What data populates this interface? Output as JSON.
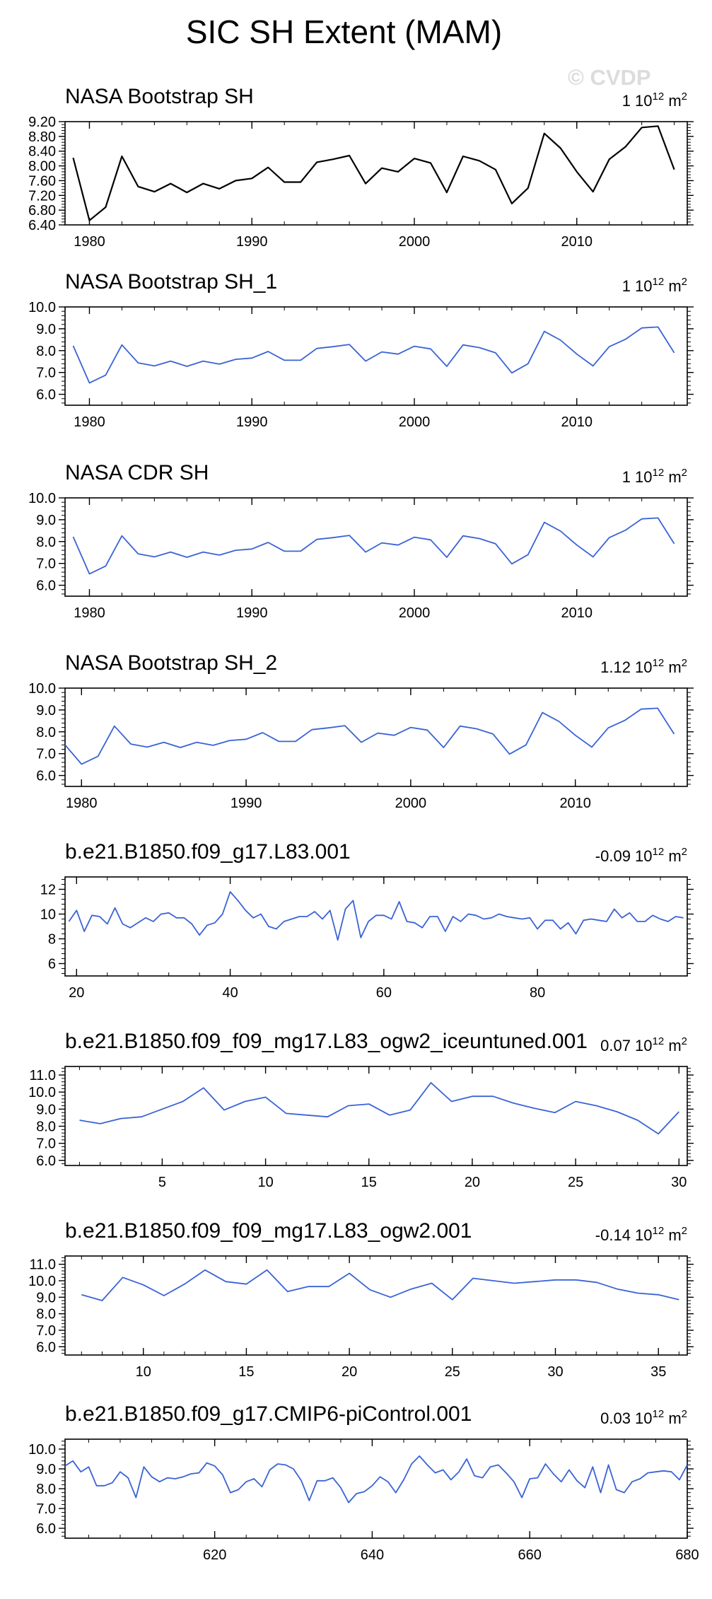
{
  "figure": {
    "title": "SIC SH Extent (MAM)",
    "watermark": "© CVDP",
    "unit_label": "10",
    "unit_exp1": "12",
    "unit_exp2": "m",
    "unit_exp3": "2"
  },
  "colors": {
    "obs": "#000000",
    "model": "#3a63d6",
    "axis": "#000000"
  },
  "chart_data": [
    {
      "type": "line",
      "title": "NASA Bootstrap SH",
      "scale_value": "1",
      "color": "obs",
      "xlim": [
        1978.5,
        2016.8
      ],
      "ylim": [
        6.4,
        9.2
      ],
      "xticks": [
        1980,
        1990,
        2000,
        2010
      ],
      "xtick_labels": [
        "1980",
        "1990",
        "2000",
        "2010"
      ],
      "yticks": [
        6.4,
        6.8,
        7.2,
        7.6,
        8.0,
        8.4,
        8.8,
        9.2
      ],
      "ytick_labels": [
        "6.40",
        "6.80",
        "7.20",
        "7.60",
        "8.00",
        "8.40",
        "8.80",
        "9.20"
      ],
      "x_start": 1979,
      "values": [
        8.22,
        6.52,
        6.88,
        8.26,
        7.44,
        7.3,
        7.52,
        7.28,
        7.52,
        7.38,
        7.6,
        7.66,
        7.96,
        7.56,
        7.56,
        8.1,
        8.18,
        8.28,
        7.52,
        7.94,
        7.84,
        8.2,
        8.08,
        7.28,
        8.26,
        8.14,
        7.9,
        6.98,
        7.4,
        8.88,
        8.48,
        7.84,
        7.3,
        8.18,
        8.52,
        9.04,
        9.08,
        7.9
      ]
    },
    {
      "type": "line",
      "title": "NASA Bootstrap SH_1",
      "scale_value": "1",
      "color": "model",
      "xlim": [
        1978.5,
        2016.8
      ],
      "ylim": [
        5.5,
        10.0
      ],
      "xticks": [
        1980,
        1990,
        2000,
        2010
      ],
      "xtick_labels": [
        "1980",
        "1990",
        "2000",
        "2010"
      ],
      "yticks": [
        6.0,
        7.0,
        8.0,
        9.0,
        10.0
      ],
      "ytick_labels": [
        "6.0",
        "7.0",
        "8.0",
        "9.0",
        "10.0"
      ],
      "x_start": 1979,
      "values": [
        8.22,
        6.52,
        6.88,
        8.26,
        7.44,
        7.3,
        7.52,
        7.28,
        7.52,
        7.38,
        7.6,
        7.66,
        7.96,
        7.56,
        7.56,
        8.1,
        8.18,
        8.28,
        7.52,
        7.94,
        7.84,
        8.2,
        8.08,
        7.28,
        8.26,
        8.14,
        7.9,
        6.98,
        7.4,
        8.88,
        8.48,
        7.84,
        7.3,
        8.18,
        8.52,
        9.04,
        9.08,
        7.9
      ]
    },
    {
      "type": "line",
      "title": "NASA CDR SH",
      "scale_value": "1",
      "color": "model",
      "xlim": [
        1978.5,
        2016.8
      ],
      "ylim": [
        5.5,
        10.0
      ],
      "xticks": [
        1980,
        1990,
        2000,
        2010
      ],
      "xtick_labels": [
        "1980",
        "1990",
        "2000",
        "2010"
      ],
      "yticks": [
        6.0,
        7.0,
        8.0,
        9.0,
        10.0
      ],
      "ytick_labels": [
        "6.0",
        "7.0",
        "8.0",
        "9.0",
        "10.0"
      ],
      "x_start": 1979,
      "values": [
        8.22,
        6.52,
        6.88,
        8.26,
        7.44,
        7.3,
        7.52,
        7.28,
        7.52,
        7.38,
        7.6,
        7.66,
        7.96,
        7.56,
        7.56,
        8.1,
        8.18,
        8.28,
        7.52,
        7.94,
        7.84,
        8.2,
        8.08,
        7.28,
        8.26,
        8.14,
        7.9,
        6.98,
        7.4,
        8.88,
        8.48,
        7.84,
        7.3,
        8.18,
        8.52,
        9.04,
        9.08,
        7.9
      ]
    },
    {
      "type": "line",
      "title": "NASA Bootstrap SH_2",
      "scale_value": "1.12",
      "color": "model",
      "xlim": [
        1979.0,
        2016.8
      ],
      "ylim": [
        5.5,
        10.0
      ],
      "xticks": [
        1980,
        1990,
        2000,
        2010
      ],
      "xtick_labels": [
        "1980",
        "1990",
        "2000",
        "2010"
      ],
      "yticks": [
        6.0,
        7.0,
        8.0,
        9.0,
        10.0
      ],
      "ytick_labels": [
        "6.0",
        "7.0",
        "8.0",
        "9.0",
        "10.0"
      ],
      "x_start": 1979,
      "values": [
        7.4,
        6.52,
        6.88,
        8.26,
        7.44,
        7.3,
        7.52,
        7.28,
        7.52,
        7.38,
        7.6,
        7.66,
        7.96,
        7.56,
        7.56,
        8.1,
        8.18,
        8.28,
        7.52,
        7.94,
        7.84,
        8.2,
        8.08,
        7.28,
        8.26,
        8.14,
        7.9,
        6.98,
        7.4,
        8.88,
        8.48,
        7.84,
        7.3,
        8.18,
        8.52,
        9.04,
        9.08,
        7.9
      ]
    },
    {
      "type": "line",
      "title": "b.e21.B1850.f09_g17.L83.001",
      "scale_value": "-0.09",
      "color": "model",
      "xlim": [
        18.5,
        99.5
      ],
      "ylim": [
        5.0,
        13.0
      ],
      "xticks": [
        20,
        40,
        60,
        80
      ],
      "xtick_labels": [
        "20",
        "40",
        "60",
        "80"
      ],
      "yticks": [
        6,
        8,
        10,
        12
      ],
      "ytick_labels": [
        "6",
        "8",
        "10",
        "12"
      ],
      "x_start": 19,
      "values": [
        9.4,
        10.3,
        8.6,
        9.9,
        9.8,
        9.2,
        10.5,
        9.2,
        8.9,
        9.3,
        9.7,
        9.4,
        10.0,
        10.1,
        9.7,
        9.7,
        9.2,
        8.3,
        9.1,
        9.3,
        10.0,
        11.8,
        11.1,
        10.3,
        9.7,
        10.0,
        9.0,
        8.8,
        9.4,
        9.6,
        9.8,
        9.8,
        10.2,
        9.6,
        10.3,
        7.9,
        10.4,
        11.1,
        8.1,
        9.4,
        9.9,
        9.9,
        9.6,
        11.0,
        9.4,
        9.3,
        8.9,
        9.8,
        9.8,
        8.6,
        9.8,
        9.4,
        10.0,
        9.9,
        9.6,
        9.7,
        10.0,
        9.8,
        9.7,
        9.6,
        9.7,
        8.8,
        9.5,
        9.5,
        8.8,
        9.3,
        8.4,
        9.5,
        9.6,
        9.5,
        9.4,
        10.4,
        9.7,
        10.1,
        9.4,
        9.4,
        9.9,
        9.6,
        9.4,
        9.8,
        9.7
      ]
    },
    {
      "type": "line",
      "title": "b.e21.B1850.f09_f09_mg17.L83_ogw2_iceuntuned.001",
      "scale_value": "0.07",
      "color": "model",
      "xlim": [
        0.3,
        30.4
      ],
      "ylim": [
        5.7,
        11.5
      ],
      "xticks": [
        5,
        10,
        15,
        20,
        25,
        30
      ],
      "xtick_labels": [
        "5",
        "10",
        "15",
        "20",
        "25",
        "30"
      ],
      "yticks": [
        6.0,
        7.0,
        8.0,
        9.0,
        10.0,
        11.0
      ],
      "ytick_labels": [
        "6.0",
        "7.0",
        "8.0",
        "9.0",
        "10.0",
        "11.0"
      ],
      "x_start": 1,
      "values": [
        8.35,
        8.15,
        8.45,
        8.55,
        9.0,
        9.45,
        10.25,
        8.95,
        9.45,
        9.7,
        8.75,
        8.65,
        8.55,
        9.2,
        9.3,
        8.65,
        8.95,
        10.55,
        9.45,
        9.75,
        9.75,
        9.35,
        9.05,
        8.8,
        9.45,
        9.2,
        8.85,
        8.35,
        7.55,
        8.85
      ]
    },
    {
      "type": "line",
      "title": "b.e21.B1850.f09_f09_mg17.L83_ogw2.001",
      "scale_value": "-0.14",
      "color": "model",
      "xlim": [
        6.2,
        36.4
      ],
      "ylim": [
        5.5,
        11.5
      ],
      "xticks": [
        10,
        15,
        20,
        25,
        30,
        35
      ],
      "xtick_labels": [
        "10",
        "15",
        "20",
        "25",
        "30",
        "35"
      ],
      "yticks": [
        6.0,
        7.0,
        8.0,
        9.0,
        10.0,
        11.0
      ],
      "ytick_labels": [
        "6.0",
        "7.0",
        "8.0",
        "9.0",
        "10.0",
        "11.0"
      ],
      "x_start": 7,
      "values": [
        9.15,
        8.8,
        10.2,
        9.75,
        9.1,
        9.8,
        10.65,
        9.95,
        9.8,
        10.65,
        9.35,
        9.65,
        9.65,
        10.45,
        9.45,
        9.0,
        9.5,
        9.85,
        8.85,
        10.15,
        10.0,
        9.85,
        9.95,
        10.05,
        10.05,
        9.9,
        9.5,
        9.25,
        9.15,
        8.85
      ]
    },
    {
      "type": "line",
      "title": "b.e21.B1850.f09_g17.CMIP6-piControl.001",
      "scale_value": "0.03",
      "color": "model",
      "xlim": [
        601.0,
        680.0
      ],
      "ylim": [
        5.5,
        10.5
      ],
      "xticks": [
        620,
        640,
        660,
        680
      ],
      "xtick_labels": [
        "620",
        "640",
        "660",
        "680"
      ],
      "yticks": [
        6.0,
        7.0,
        8.0,
        9.0,
        10.0
      ],
      "ytick_labels": [
        "6.0",
        "7.0",
        "8.0",
        "9.0",
        "10.0"
      ],
      "x_start": 601,
      "values": [
        9.15,
        9.4,
        8.85,
        9.1,
        8.15,
        8.15,
        8.3,
        8.85,
        8.55,
        7.55,
        9.1,
        8.6,
        8.35,
        8.55,
        8.5,
        8.6,
        8.75,
        8.8,
        9.3,
        9.15,
        8.7,
        7.8,
        7.95,
        8.35,
        8.5,
        8.1,
        8.95,
        9.25,
        9.2,
        9.0,
        8.4,
        7.4,
        8.4,
        8.4,
        8.55,
        8.05,
        7.3,
        7.75,
        7.85,
        8.15,
        8.6,
        8.35,
        7.8,
        8.45,
        9.25,
        9.65,
        9.2,
        8.8,
        8.95,
        8.45,
        8.85,
        9.5,
        8.65,
        8.55,
        9.1,
        9.2,
        8.8,
        8.35,
        7.55,
        8.5,
        8.55,
        9.25,
        8.75,
        8.35,
        8.95,
        8.4,
        8.05,
        9.1,
        7.8,
        9.2,
        7.95,
        7.8,
        8.35,
        8.5,
        8.8,
        8.85,
        8.9,
        8.85,
        8.45,
        9.2
      ]
    }
  ]
}
